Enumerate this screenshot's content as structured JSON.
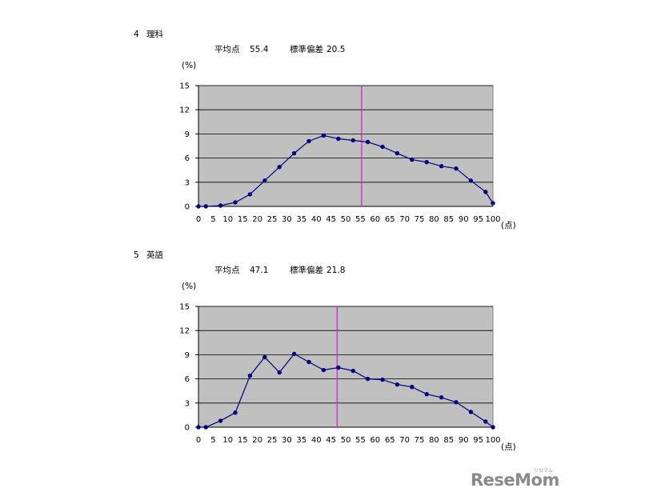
{
  "logo": {
    "text": "ReseMom",
    "sub": "リセマム"
  },
  "chart_data": [
    {
      "type": "line",
      "section_number": "4",
      "section_title": "理科",
      "mean_label": "平均点",
      "mean_value": "55.4",
      "sd_label": "標準偏差",
      "sd_value": "20.5",
      "ylabel": "(%)",
      "xlabel": "(点)",
      "ylim": [
        0,
        15
      ],
      "xlim": [
        0,
        100
      ],
      "yticks": [
        0,
        3,
        6,
        9,
        12,
        15
      ],
      "xticks": [
        0,
        5,
        10,
        15,
        20,
        25,
        30,
        35,
        40,
        45,
        50,
        55,
        60,
        65,
        70,
        75,
        80,
        85,
        90,
        95,
        100
      ],
      "grid": true,
      "plot_bg": "#c0c0c0",
      "line_color": "#000080",
      "mean_line_color": "#cc33cc",
      "mean_line_x": 55.4,
      "series": [
        {
          "x": [
            0,
            2.5,
            7.5,
            12.5,
            17.5,
            22.5,
            27.5,
            32.5,
            37.5,
            42.5,
            47.5,
            52.5,
            57.5,
            62.5,
            67.5,
            72.5,
            77.5,
            82.5,
            87.5,
            92.5,
            97.5,
            100
          ],
          "values": [
            0,
            0,
            0.1,
            0.5,
            1.5,
            3.2,
            4.9,
            6.6,
            8.1,
            8.8,
            8.4,
            8.2,
            8.0,
            7.4,
            6.6,
            5.8,
            5.5,
            5.0,
            4.7,
            3.2,
            1.8,
            0.4
          ]
        }
      ]
    },
    {
      "type": "line",
      "section_number": "5",
      "section_title": "英語",
      "mean_label": "平均点",
      "mean_value": "47.1",
      "sd_label": "標準偏差",
      "sd_value": "21.8",
      "ylabel": "(%)",
      "xlabel": "(点)",
      "ylim": [
        0,
        15
      ],
      "xlim": [
        0,
        100
      ],
      "yticks": [
        0,
        3,
        6,
        9,
        12,
        15
      ],
      "xticks": [
        0,
        5,
        10,
        15,
        20,
        25,
        30,
        35,
        40,
        45,
        50,
        55,
        60,
        65,
        70,
        75,
        80,
        85,
        90,
        95,
        100
      ],
      "grid": true,
      "plot_bg": "#c0c0c0",
      "line_color": "#000080",
      "mean_line_color": "#cc33cc",
      "mean_line_x": 47.1,
      "series": [
        {
          "x": [
            0,
            2.5,
            7.5,
            12.5,
            17.5,
            22.5,
            27.5,
            32.5,
            37.5,
            42.5,
            47.5,
            52.5,
            57.5,
            62.5,
            67.5,
            72.5,
            77.5,
            82.5,
            87.5,
            92.5,
            97.5,
            100
          ],
          "values": [
            0,
            0,
            0.8,
            1.8,
            6.4,
            8.7,
            6.8,
            9.1,
            8.1,
            7.1,
            7.4,
            7.0,
            6.0,
            5.9,
            5.3,
            5.0,
            4.1,
            3.7,
            3.1,
            1.9,
            0.7,
            0
          ]
        }
      ]
    }
  ]
}
